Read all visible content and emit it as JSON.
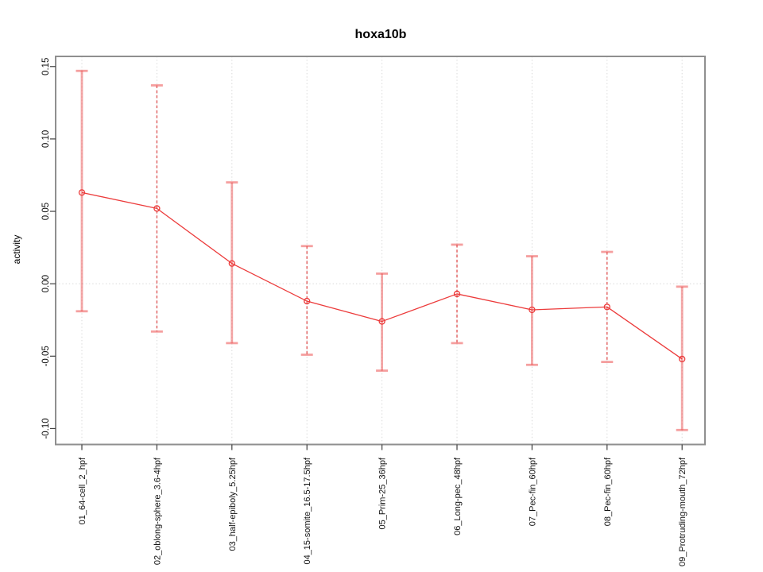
{
  "chart_data": {
    "type": "line",
    "title": "hoxa10b",
    "xlabel": "",
    "ylabel": "activity",
    "categories": [
      "01_64-cell_2_hpf",
      "02_oblong-sphere_3.6-4hpf",
      "03_half-epiboly_5.25hpf",
      "04_15-somite_16.5-17.5hpf",
      "05_Prim-25_36hpf",
      "06_Long-pec_48hpf",
      "07_Pec-fin_60hpf",
      "08_Pec-fin_60hpf",
      "09_Protruding-mouth_72hpf"
    ],
    "series": [
      {
        "name": "hoxa10b activity",
        "values": [
          0.063,
          0.052,
          0.014,
          -0.012,
          -0.026,
          -0.007,
          -0.018,
          -0.016,
          -0.052
        ],
        "upper": [
          0.147,
          0.137,
          0.07,
          0.026,
          0.007,
          0.027,
          0.019,
          0.022,
          -0.002
        ],
        "lower": [
          -0.019,
          -0.033,
          -0.041,
          -0.049,
          -0.06,
          -0.041,
          -0.056,
          -0.054,
          -0.101
        ]
      }
    ],
    "yticks": [
      -0.1,
      -0.05,
      0.0,
      0.05,
      0.1,
      0.15
    ],
    "ylim": [
      -0.111,
      0.157
    ],
    "marker": "open-circle",
    "error_bars": true,
    "error_bar_vertical_style_alternates": [
      "solid-pink",
      "dashed-red"
    ],
    "grid": {
      "vertical": "per-category",
      "horizontal_at": 0,
      "style": "dotted"
    },
    "legend": "none",
    "colors": {
      "line": "#ec3b3b",
      "marker": "#ec3b3b",
      "whisker_solid": "rgba(236,80,80,0.50)",
      "whisker_cap": "rgba(236,80,80,0.55)",
      "whisker_dashed": "#e05c5c",
      "grid": "#d8d8d8",
      "box": "#8f8f8f",
      "tick": "#404040",
      "background": "#ffffff"
    }
  }
}
